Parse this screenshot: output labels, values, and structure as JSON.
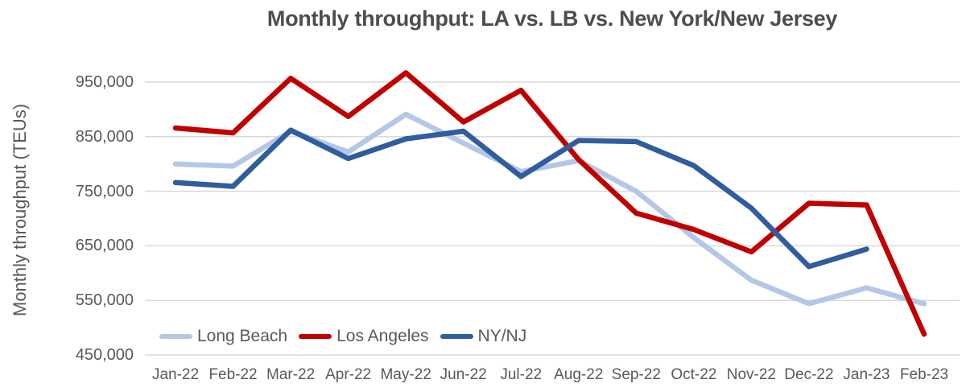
{
  "chart_data": {
    "type": "line",
    "title": "Monthly throughput: LA vs. LB vs. New York/New Jersey",
    "ylabel": "Monthly throughput (TEUs)",
    "xlabel": "",
    "categories": [
      "Jan-22",
      "Feb-22",
      "Mar-22",
      "Apr-22",
      "May-22",
      "Jun-22",
      "Jul-22",
      "Aug-22",
      "Sep-22",
      "Oct-22",
      "Nov-22",
      "Dec-22",
      "Jan-23",
      "Feb-23"
    ],
    "series": [
      {
        "name": "Long Beach",
        "color": "#B4C7E7",
        "values": [
          800000,
          796000,
          860000,
          822000,
          891000,
          838000,
          786000,
          806000,
          750000,
          665000,
          587000,
          544000,
          573000,
          544000
        ]
      },
      {
        "name": "Los Angeles",
        "color": "#C00000",
        "values": [
          866000,
          857000,
          957000,
          887000,
          967000,
          877000,
          935000,
          808000,
          710000,
          680000,
          639000,
          728000,
          725000,
          488000
        ]
      },
      {
        "name": "NY/NJ",
        "color": "#2F5D9E",
        "values": [
          766000,
          759000,
          862000,
          810000,
          846000,
          860000,
          777000,
          843000,
          841000,
          797000,
          719000,
          612000,
          644000,
          null
        ]
      }
    ],
    "ylim": [
      450000,
      980000
    ],
    "yticks": [
      450000,
      550000,
      650000,
      750000,
      850000,
      950000
    ],
    "grid": "horizontal",
    "legend_position": "inside-bottom-left"
  },
  "colors": {
    "title_text": "#4D4D4D",
    "axis_text": "#595959",
    "gridline": "#D9D9D9",
    "background": "#FFFFFF"
  }
}
